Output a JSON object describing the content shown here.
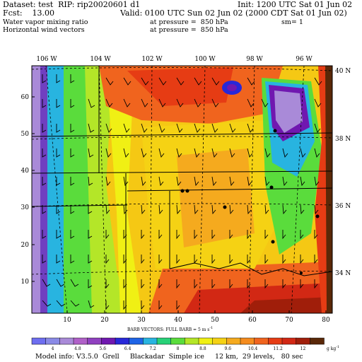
{
  "header": {
    "dataset_line": "Dataset: test  RIP: rip20020601 d1",
    "init_line": "Init: 1200 UTC Sat 01 Jun 02",
    "fcst_line": "Fcst:    13.00",
    "valid_line": "Valid: 0100 UTC Sun 02 Jun 02 (2000 CDT Sat 01 Jun 02)",
    "field1_name": "Water vapor mixing ratio",
    "field1_level": "at pressure =  850 hPa",
    "field1_extra": "sm= 1",
    "field2_name": "Horizontal wind vectors",
    "field2_level": "at pressure =  850 hPa"
  },
  "map": {
    "top_lon_labels": [
      "106 W",
      "104 W",
      "102 W",
      "100 W",
      "98 W",
      "96 W"
    ],
    "right_lat_labels": [
      "40 N",
      "38 N",
      "36 N",
      "34 N"
    ],
    "left_y_ticks": [
      "60",
      "50",
      "40",
      "30",
      "20",
      "10"
    ],
    "bottom_x_ticks": [
      "10",
      "20",
      "30",
      "40",
      "50",
      "60",
      "70",
      "80"
    ]
  },
  "barbs_note": "BARB VECTORS:  FULL BARB = 5 m s",
  "barbs_unit_sup": "-1",
  "colorbar": {
    "labels": [
      "4",
      "4.8",
      "5.6",
      "6.4",
      "7.2",
      "8",
      "8.8",
      "9.6",
      "10.4",
      "11.2",
      "12"
    ],
    "unit": "g kg",
    "unit_sup": "-1",
    "colors": [
      "#6e6ef0",
      "#8a8ae6",
      "#a98ad8",
      "#b060c8",
      "#9040c0",
      "#7018b0",
      "#2828d8",
      "#1e64e6",
      "#28b4e0",
      "#28d278",
      "#5adc3c",
      "#b4e628",
      "#f0f014",
      "#f5d214",
      "#f5aa1e",
      "#f58c1e",
      "#f0641e",
      "#e63c14",
      "#d22814",
      "#a01e0a",
      "#5a2808"
    ]
  },
  "footer": "Model info: V3.5.0  Grell     Blackadar  Simple ice     12 km,  29 levels,   80 sec"
}
